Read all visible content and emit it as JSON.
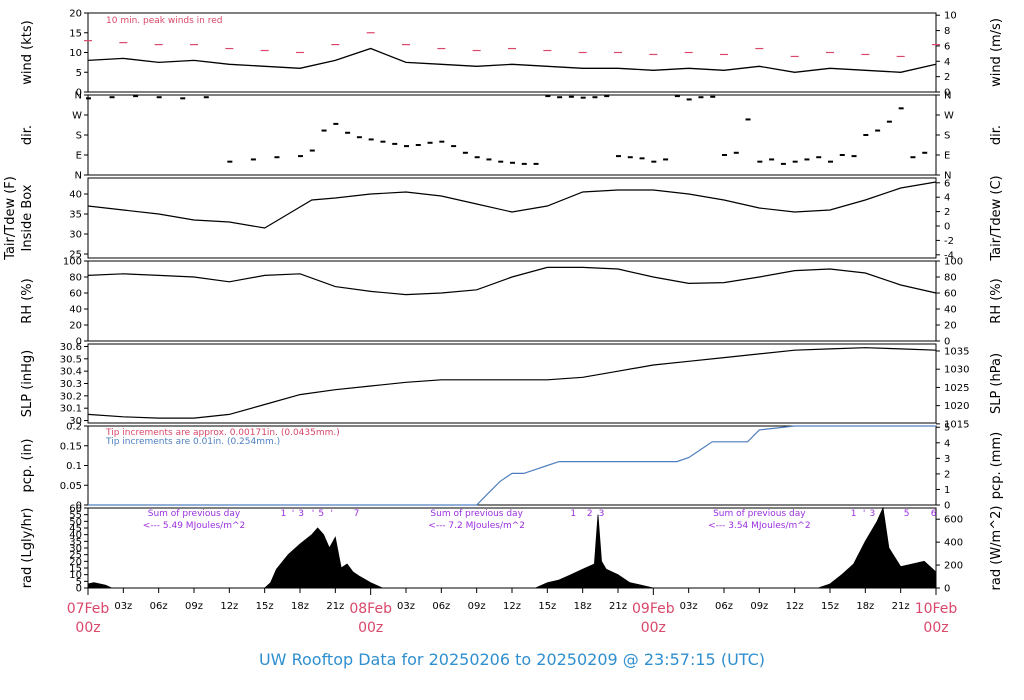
{
  "title": "UW Rooftop Data for 20250206  to  20250209 @ 23:57:15  (UTC)",
  "colors": {
    "peak": "#d9476a",
    "pcp": "#4f7fbf",
    "purple": "#9b30e0",
    "title": "#2f8fd0",
    "line": "#000000"
  },
  "x_axis": {
    "ticks": [
      "03z",
      "06z",
      "09z",
      "12z",
      "15z",
      "18z",
      "21z",
      "03z",
      "06z",
      "09z",
      "12z",
      "15z",
      "18z",
      "21z",
      "03z",
      "06z",
      "09z",
      "12z",
      "15z",
      "18z",
      "21z"
    ],
    "tick_hours": [
      3,
      6,
      9,
      12,
      15,
      18,
      21,
      27,
      30,
      33,
      36,
      39,
      42,
      45,
      51,
      54,
      57,
      60,
      63,
      66,
      69
    ],
    "days": [
      {
        "hour": 0,
        "label": "07Feb",
        "sub": "00z"
      },
      {
        "hour": 24,
        "label": "08Feb",
        "sub": "00z"
      },
      {
        "hour": 48,
        "label": "09Feb",
        "sub": "00z"
      },
      {
        "hour": 72,
        "label": "10Feb",
        "sub": "00z"
      }
    ],
    "range_hours": [
      0,
      72
    ]
  },
  "chart_data": [
    {
      "type": "line",
      "id": "wind",
      "ylabel": "wind (kts)",
      "ylabel_right": "wind (m/s)",
      "ylim": [
        0,
        20
      ],
      "yticks": [
        0,
        5,
        10,
        15,
        20
      ],
      "ylim_right": [
        0,
        10.29
      ],
      "yticks_right": [
        0,
        2,
        4,
        6,
        8,
        10
      ],
      "annotation": "10 min. peak winds in red",
      "series": [
        {
          "kind": "mean",
          "x": [
            0,
            3,
            6,
            9,
            12,
            15,
            18,
            21,
            24,
            27,
            30,
            33,
            36,
            39,
            42,
            45,
            48,
            51,
            54,
            57,
            60,
            63,
            66,
            69,
            72
          ],
          "y": [
            8,
            8.5,
            7.5,
            8,
            7,
            6.5,
            6,
            8,
            11,
            7.5,
            7,
            6.5,
            7,
            6.5,
            6,
            6,
            5.5,
            6,
            5.5,
            6.5,
            5,
            6,
            5.5,
            5,
            7
          ]
        },
        {
          "kind": "peak",
          "x": [
            0,
            3,
            6,
            9,
            12,
            15,
            18,
            21,
            24,
            27,
            30,
            33,
            36,
            39,
            42,
            45,
            48,
            51,
            54,
            57,
            60,
            63,
            66,
            69,
            72
          ],
          "y": [
            13,
            12.5,
            12,
            12,
            11,
            10.5,
            10,
            12,
            15,
            12,
            11,
            10.5,
            11,
            10.5,
            10,
            10,
            9.5,
            10,
            9.5,
            11,
            9,
            10,
            9.5,
            9,
            12
          ]
        }
      ]
    },
    {
      "type": "scatter",
      "id": "dir",
      "ylabel": "dir.",
      "ylabel_right": "dir.",
      "ylim": [
        0,
        360
      ],
      "yticks": [
        "N",
        "E",
        "S",
        "W",
        "N"
      ],
      "ytick_values": [
        0,
        90,
        180,
        270,
        360
      ],
      "series": [
        {
          "x": [
            0,
            2,
            4,
            6,
            8,
            10,
            12,
            14,
            16,
            18,
            19,
            20,
            21,
            22,
            23,
            24,
            25,
            26,
            27,
            28,
            29,
            30,
            31,
            32,
            33,
            34,
            35,
            36,
            37,
            38,
            39,
            40,
            41,
            42,
            43,
            44,
            45,
            46,
            47,
            48,
            49,
            50,
            51,
            52,
            53,
            54,
            55,
            56,
            57,
            58,
            59,
            60,
            61,
            62,
            63,
            64,
            65,
            66,
            67,
            68,
            69,
            70,
            71
          ],
          "y": [
            345,
            350,
            355,
            350,
            345,
            350,
            60,
            70,
            80,
            85,
            110,
            200,
            230,
            190,
            170,
            160,
            150,
            140,
            130,
            135,
            145,
            150,
            130,
            100,
            80,
            70,
            60,
            55,
            50,
            50,
            355,
            350,
            352,
            348,
            350,
            355,
            85,
            80,
            75,
            60,
            70,
            355,
            340,
            350,
            352,
            90,
            100,
            250,
            60,
            70,
            50,
            60,
            70,
            80,
            60,
            90,
            85,
            180,
            200,
            240,
            300,
            80,
            100
          ]
        }
      ]
    },
    {
      "type": "line",
      "id": "temp",
      "ylabel": "Tair/Tdew (F)",
      "ylabel2": "Inside Box",
      "ylabel_right": "Tair/Tdew (C)",
      "ylim": [
        24,
        44
      ],
      "yticks": [
        25,
        30,
        35,
        40
      ],
      "yticks_right": [
        -4,
        -2,
        0,
        2,
        4,
        6
      ],
      "series": [
        {
          "x": [
            0,
            3,
            6,
            9,
            12,
            15,
            17,
            19,
            21,
            24,
            27,
            30,
            33,
            36,
            39,
            42,
            45,
            48,
            51,
            54,
            57,
            60,
            63,
            66,
            69,
            70,
            72
          ],
          "y": [
            37,
            36,
            35,
            33.5,
            33,
            31.5,
            35,
            38.5,
            39,
            40,
            40.5,
            39.5,
            37.5,
            35.5,
            37,
            40.5,
            41,
            41,
            40,
            38.5,
            36.5,
            35.5,
            36,
            38.5,
            41.5,
            42,
            43
          ]
        }
      ]
    },
    {
      "type": "line",
      "id": "rh",
      "ylabel": "RH (%)",
      "ylabel_right": "RH (%)",
      "ylim": [
        0,
        100
      ],
      "yticks": [
        0,
        20,
        40,
        60,
        80,
        100
      ],
      "series": [
        {
          "x": [
            0,
            3,
            6,
            9,
            12,
            15,
            18,
            21,
            24,
            27,
            30,
            33,
            36,
            39,
            42,
            45,
            48,
            51,
            54,
            57,
            60,
            63,
            66,
            69,
            72
          ],
          "y": [
            82,
            84,
            82,
            80,
            74,
            82,
            84,
            68,
            62,
            58,
            60,
            64,
            80,
            92,
            92,
            90,
            80,
            72,
            73,
            80,
            88,
            90,
            85,
            70,
            60
          ]
        }
      ]
    },
    {
      "type": "line",
      "id": "slp",
      "ylabel": "SLP (inHg)",
      "ylabel_right": "SLP (hPa)",
      "ylim": [
        29.98,
        30.62
      ],
      "yticks": [
        30.0,
        30.1,
        30.2,
        30.3,
        30.4,
        30.5,
        30.6
      ],
      "yticks_right": [
        1015,
        1020,
        1025,
        1030,
        1035
      ],
      "series": [
        {
          "x": [
            0,
            3,
            6,
            9,
            12,
            15,
            18,
            21,
            24,
            27,
            30,
            33,
            36,
            39,
            42,
            45,
            48,
            51,
            54,
            57,
            60,
            63,
            66,
            69,
            72
          ],
          "y": [
            30.05,
            30.03,
            30.02,
            30.02,
            30.05,
            30.13,
            30.21,
            30.25,
            30.28,
            30.31,
            30.33,
            30.33,
            30.33,
            30.33,
            30.35,
            30.4,
            30.45,
            30.48,
            30.51,
            30.54,
            30.57,
            30.58,
            30.59,
            30.58,
            30.57
          ]
        }
      ]
    },
    {
      "type": "line",
      "id": "pcp",
      "ylabel": "pcp. (in)",
      "ylabel_right": "pcp. (mm)",
      "ylim": [
        0,
        0.2
      ],
      "yticks": [
        0.0,
        0.05,
        0.1,
        0.15,
        0.2
      ],
      "yticks_right": [
        0,
        1,
        2,
        3,
        4,
        5
      ],
      "annotation1": "Tip increments are approx. 0.00171in. (0.0435mm.)",
      "annotation2": "Tip increments are 0.01in. (0.254mm.)",
      "series": [
        {
          "x": [
            0,
            33,
            34,
            35,
            36,
            37,
            38,
            39,
            40,
            50,
            51,
            52,
            53,
            56,
            57,
            60,
            72
          ],
          "y": [
            0,
            0,
            0.03,
            0.06,
            0.08,
            0.08,
            0.09,
            0.1,
            0.11,
            0.11,
            0.12,
            0.14,
            0.16,
            0.16,
            0.19,
            0.2,
            0.2
          ]
        }
      ]
    },
    {
      "type": "area",
      "id": "rad",
      "ylabel": "rad (Lgly/hr)",
      "ylabel_right": "rad (W/m^2)",
      "ylim": [
        0,
        60
      ],
      "yticks": [
        0,
        5,
        10,
        15,
        20,
        25,
        30,
        35,
        40,
        45,
        50,
        55,
        60
      ],
      "yticks_right": [
        0,
        200,
        400,
        600
      ],
      "day_notes": [
        {
          "hour": 9,
          "line1": "Sum of previous day",
          "line2": "<--- 5.49 MJoules/m^2"
        },
        {
          "hour": 33,
          "line1": "Sum of previous day",
          "line2": "<--- 7.2 MJoules/m^2"
        },
        {
          "hour": 57,
          "line1": "Sum of previous day",
          "line2": "<--- 3.54 MJoules/m^2"
        }
      ],
      "markers": [
        {
          "hour": 16.6,
          "label": "1"
        },
        {
          "hour": 17.4,
          "label": "'"
        },
        {
          "hour": 18.1,
          "label": "3"
        },
        {
          "hour": 19.1,
          "label": "'"
        },
        {
          "hour": 19.8,
          "label": "5"
        },
        {
          "hour": 20.7,
          "label": "'"
        },
        {
          "hour": 22.8,
          "label": "7"
        },
        {
          "hour": 41.2,
          "label": "1"
        },
        {
          "hour": 42.6,
          "label": "2"
        },
        {
          "hour": 43.6,
          "label": "3"
        },
        {
          "hour": 65.0,
          "label": "1"
        },
        {
          "hour": 65.9,
          "label": "'"
        },
        {
          "hour": 66.6,
          "label": "3"
        },
        {
          "hour": 69.5,
          "label": "5"
        },
        {
          "hour": 71.8,
          "label": "6"
        }
      ],
      "series": [
        {
          "x": [
            0,
            0.5,
            1.5,
            2,
            15,
            15.5,
            16,
            17,
            18,
            19,
            19.5,
            20,
            20.5,
            21,
            21.5,
            22,
            22.5,
            23,
            24,
            25,
            38,
            39,
            40,
            41,
            42,
            43,
            43.3,
            43.6,
            44,
            45,
            46,
            47,
            48,
            62,
            63,
            64,
            65,
            66,
            67,
            67.5,
            68,
            69,
            70,
            71,
            72
          ],
          "y": [
            3,
            4,
            2,
            0,
            0,
            4,
            14,
            25,
            33,
            40,
            45,
            40,
            30,
            38,
            15,
            18,
            12,
            9,
            4,
            0,
            0,
            4,
            6,
            10,
            14,
            18,
            55,
            20,
            14,
            10,
            4,
            2,
            0,
            0,
            3,
            10,
            18,
            35,
            50,
            60,
            30,
            16,
            18,
            20,
            12
          ]
        }
      ]
    }
  ]
}
